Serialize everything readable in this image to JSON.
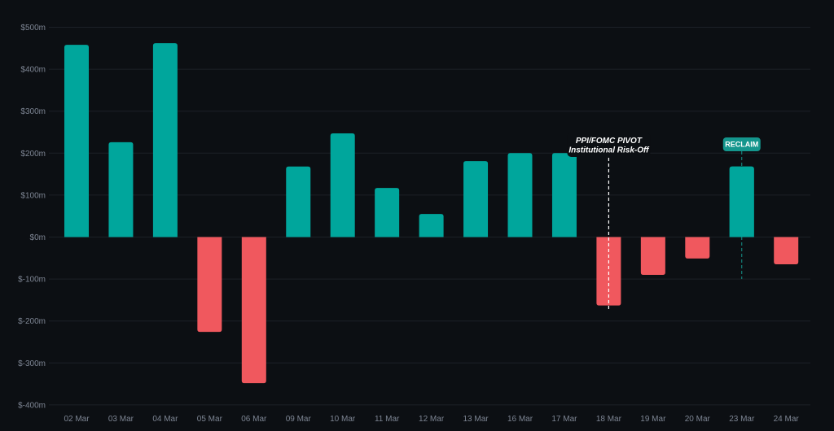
{
  "theme": {
    "background": "#0c0f13",
    "grid": "#1c2027",
    "positive": "#00a69c",
    "negative": "#f0585e",
    "tick_text": "#7d8593",
    "annotation_bg": "#0c0f13",
    "badge_bg": "#14968d"
  },
  "chart_data": {
    "type": "bar",
    "title": "",
    "xlabel": "",
    "ylabel": "",
    "ylim": [
      -400,
      500
    ],
    "yticks": [
      500,
      400,
      300,
      200,
      100,
      0,
      -100,
      -200,
      -300,
      -400
    ],
    "ytick_labels": [
      "$500m",
      "$400m",
      "$300m",
      "$200m",
      "$100m",
      "$0m",
      "$-100m",
      "$-200m",
      "$-300m",
      "$-400m"
    ],
    "grid": true,
    "legend": null,
    "categories": [
      "02 Mar",
      "03 Mar",
      "04 Mar",
      "05 Mar",
      "06 Mar",
      "09 Mar",
      "10 Mar",
      "11 Mar",
      "12 Mar",
      "13 Mar",
      "16 Mar",
      "17 Mar",
      "18 Mar",
      "19 Mar",
      "20 Mar",
      "23 Mar",
      "24 Mar"
    ],
    "values": [
      458,
      226,
      462,
      -226,
      -348,
      168,
      247,
      117,
      55,
      181,
      200,
      200,
      -163,
      -90,
      -51,
      168,
      -65
    ],
    "unit": "$m",
    "annotations": [
      {
        "category": "18 Mar",
        "type": "dashed-line-label",
        "lines": [
          "PPI/FOMC PIVOT",
          "Institutional Risk-Off"
        ],
        "line_color": "#ffffff"
      },
      {
        "category": "23 Mar",
        "type": "badge",
        "label": "RECLAIM",
        "line_color": "#14968d"
      }
    ]
  }
}
